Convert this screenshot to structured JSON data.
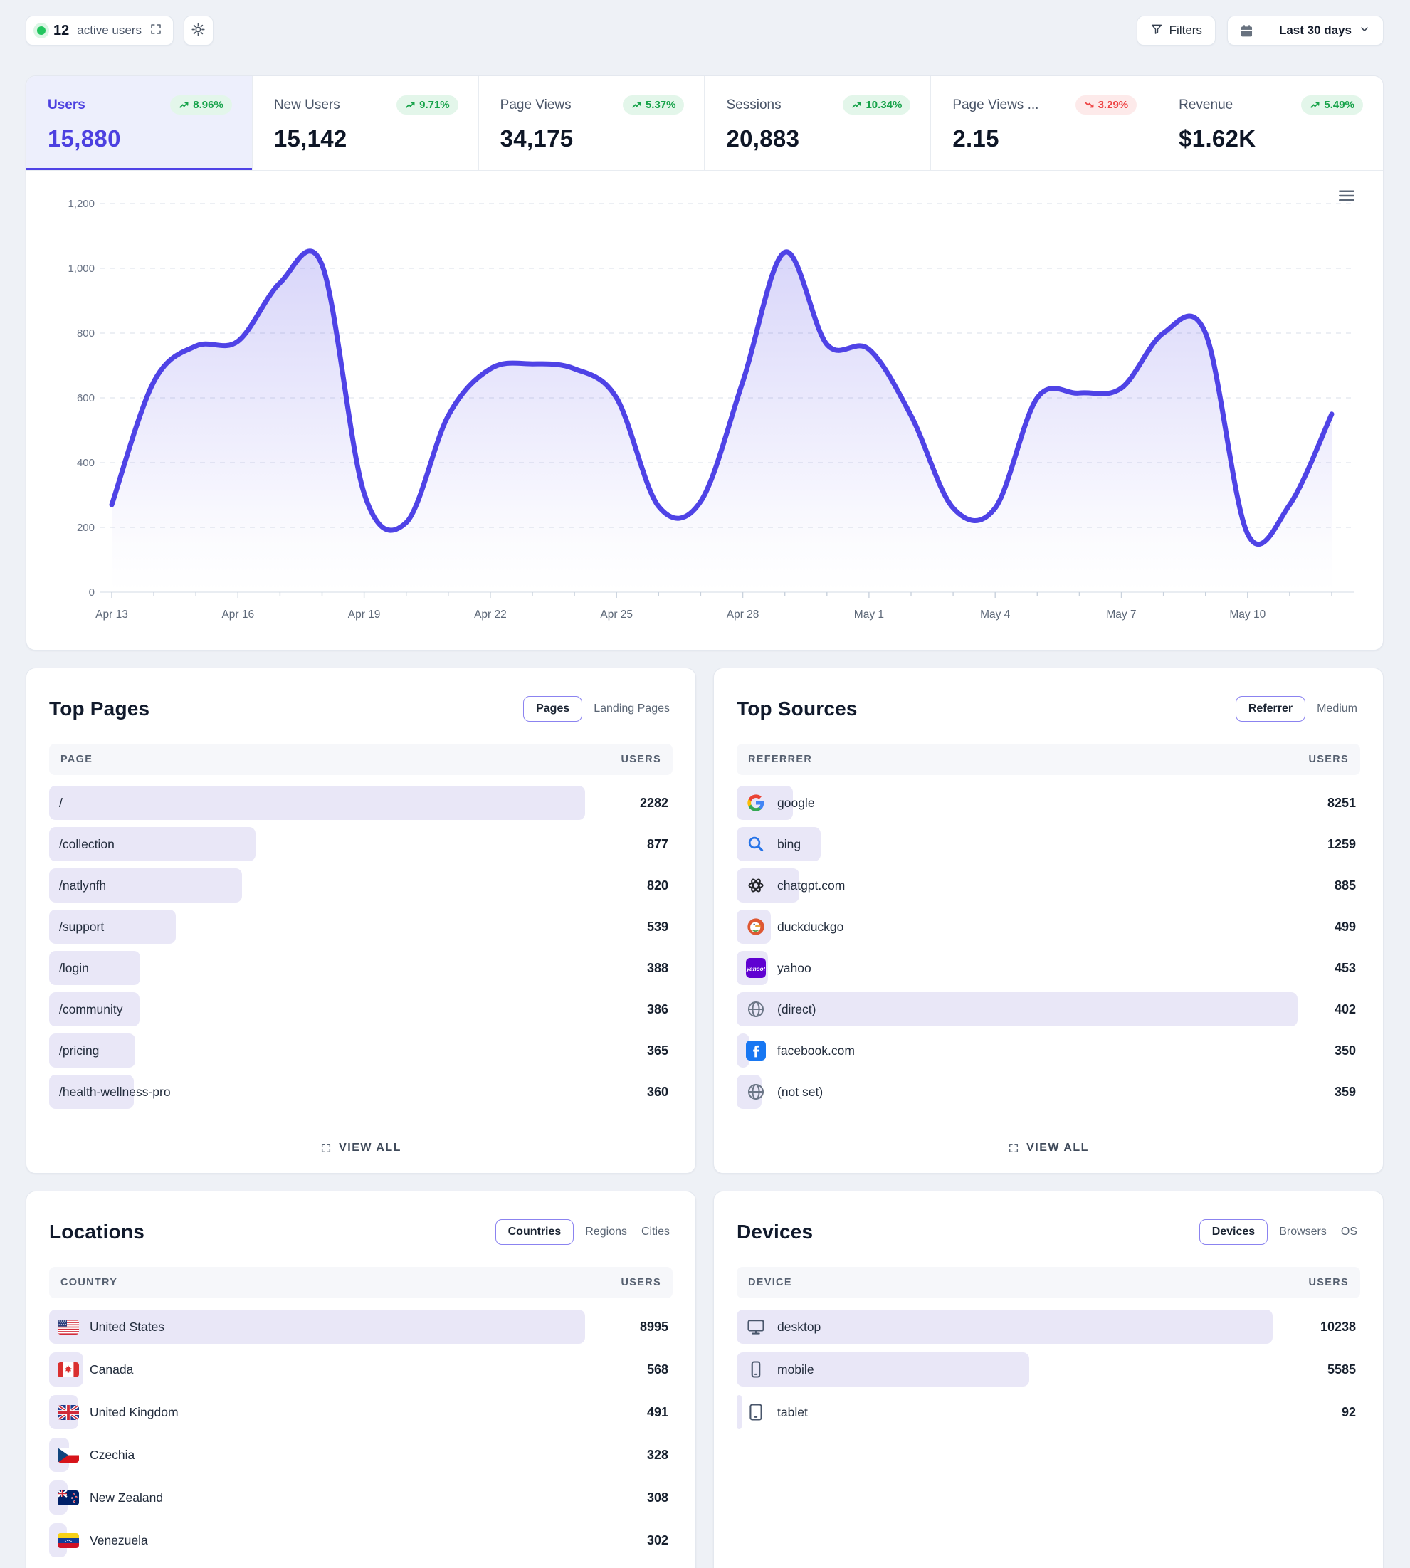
{
  "colors": {
    "accent": "#4f43e6",
    "accent_soft_bg": "#edeffc",
    "positive": "#17a34a",
    "positive_bg": "#e3f6ea",
    "negative": "#ee4444",
    "negative_bg": "#fdeaea",
    "bar_fill": "#e9e7f7",
    "live_dot": "#22c55e"
  },
  "topbar": {
    "active_users": {
      "count": "12",
      "label": "active users"
    },
    "filters_label": "Filters",
    "date_range_label": "Last 30 days"
  },
  "metrics": [
    {
      "label": "Users",
      "value": "15,880",
      "change": "8.96%",
      "direction": "up",
      "active": true
    },
    {
      "label": "New Users",
      "value": "15,142",
      "change": "9.71%",
      "direction": "up",
      "active": false
    },
    {
      "label": "Page Views",
      "value": "34,175",
      "change": "5.37%",
      "direction": "up",
      "active": false
    },
    {
      "label": "Sessions",
      "value": "20,883",
      "change": "10.34%",
      "direction": "up",
      "active": false
    },
    {
      "label": "Page Views ...",
      "value": "2.15",
      "change": "3.29%",
      "direction": "down",
      "active": false
    },
    {
      "label": "Revenue",
      "value": "$1.62K",
      "change": "5.49%",
      "direction": "up",
      "active": false
    }
  ],
  "chart_data": {
    "type": "area",
    "title": "Users — Last 30 days",
    "x": [
      "Apr 13",
      "Apr 14",
      "Apr 15",
      "Apr 16",
      "Apr 17",
      "Apr 18",
      "Apr 19",
      "Apr 20",
      "Apr 21",
      "Apr 22",
      "Apr 23",
      "Apr 24",
      "Apr 25",
      "Apr 26",
      "Apr 27",
      "Apr 28",
      "Apr 29",
      "Apr 30",
      "May 1",
      "May 2",
      "May 3",
      "May 4",
      "May 5",
      "May 6",
      "May 7",
      "May 8",
      "May 9",
      "May 10",
      "May 11",
      "May 12"
    ],
    "series": [
      {
        "name": "Users",
        "values": [
          270,
          650,
          760,
          775,
          955,
          1010,
          305,
          215,
          545,
          690,
          705,
          690,
          600,
          265,
          280,
          650,
          1050,
          765,
          750,
          545,
          260,
          260,
          600,
          615,
          630,
          800,
          800,
          180,
          270,
          550
        ]
      }
    ],
    "ylim": [
      0,
      1200
    ],
    "yticks": [
      {
        "v": 0,
        "label": "0"
      },
      {
        "v": 200,
        "label": "200"
      },
      {
        "v": 400,
        "label": "400"
      },
      {
        "v": 600,
        "label": "600"
      },
      {
        "v": 800,
        "label": "800"
      },
      {
        "v": 1000,
        "label": "1,000"
      },
      {
        "v": 1200,
        "label": "1,200"
      }
    ],
    "xtick_every": 3,
    "grid": true,
    "legend_position": "none",
    "line_color": "#4f43e6"
  },
  "panels": {
    "top_pages": {
      "title": "Top Pages",
      "tabs": [
        {
          "label": "Pages",
          "selected": true
        },
        {
          "label": "Landing Pages",
          "selected": false
        }
      ],
      "columns": [
        "PAGE",
        "USERS"
      ],
      "rows": [
        {
          "label": "/",
          "value": "2282"
        },
        {
          "label": "/collection",
          "value": "877"
        },
        {
          "label": "/natlynfh",
          "value": "820"
        },
        {
          "label": "/support",
          "value": "539"
        },
        {
          "label": "/login",
          "value": "388"
        },
        {
          "label": "/community",
          "value": "386"
        },
        {
          "label": "/pricing",
          "value": "365"
        },
        {
          "label": "/health-wellness-pro",
          "value": "360"
        }
      ],
      "footer": "VIEW ALL"
    },
    "top_sources": {
      "title": "Top Sources",
      "tabs": [
        {
          "label": "Referrer",
          "selected": true
        },
        {
          "label": "Medium",
          "selected": false
        }
      ],
      "columns": [
        "REFERRER",
        "USERS"
      ],
      "rows": [
        {
          "label": "google",
          "icon": "google",
          "value": "8251",
          "bar_pct": 9
        },
        {
          "label": "bing",
          "icon": "bing",
          "value": "1259",
          "bar_pct": 13.5
        },
        {
          "label": "chatgpt.com",
          "icon": "openai",
          "value": "885",
          "bar_pct": 10
        },
        {
          "label": "duckduckgo",
          "icon": "duckduckgo",
          "value": "499",
          "bar_pct": 5.5
        },
        {
          "label": "yahoo",
          "icon": "yahoo",
          "value": "453",
          "bar_pct": 5
        },
        {
          "label": "(direct)",
          "icon": "globe",
          "value": "402",
          "bar_pct": 90
        },
        {
          "label": "facebook.com",
          "icon": "facebook",
          "value": "350",
          "bar_pct": 2
        },
        {
          "label": "(not set)",
          "icon": "globe",
          "value": "359",
          "bar_pct": 4
        }
      ],
      "footer": "VIEW ALL"
    },
    "locations": {
      "title": "Locations",
      "tabs": [
        {
          "label": "Countries",
          "selected": true
        },
        {
          "label": "Regions",
          "selected": false
        },
        {
          "label": "Cities",
          "selected": false
        }
      ],
      "columns": [
        "COUNTRY",
        "USERS"
      ],
      "rows": [
        {
          "label": "United States",
          "icon": "flag-us",
          "value": "8995"
        },
        {
          "label": "Canada",
          "icon": "flag-ca",
          "value": "568"
        },
        {
          "label": "United Kingdom",
          "icon": "flag-gb",
          "value": "491"
        },
        {
          "label": "Czechia",
          "icon": "flag-cz",
          "value": "328"
        },
        {
          "label": "New Zealand",
          "icon": "flag-nz",
          "value": "308"
        },
        {
          "label": "Venezuela",
          "icon": "flag-ve",
          "value": "302"
        }
      ]
    },
    "devices": {
      "title": "Devices",
      "tabs": [
        {
          "label": "Devices",
          "selected": true
        },
        {
          "label": "Browsers",
          "selected": false
        },
        {
          "label": "OS",
          "selected": false
        }
      ],
      "columns": [
        "DEVICE",
        "USERS"
      ],
      "rows": [
        {
          "label": "desktop",
          "icon": "desktop",
          "value": "10238"
        },
        {
          "label": "mobile",
          "icon": "mobile",
          "value": "5585"
        },
        {
          "label": "tablet",
          "icon": "tablet",
          "value": "92"
        }
      ]
    }
  }
}
